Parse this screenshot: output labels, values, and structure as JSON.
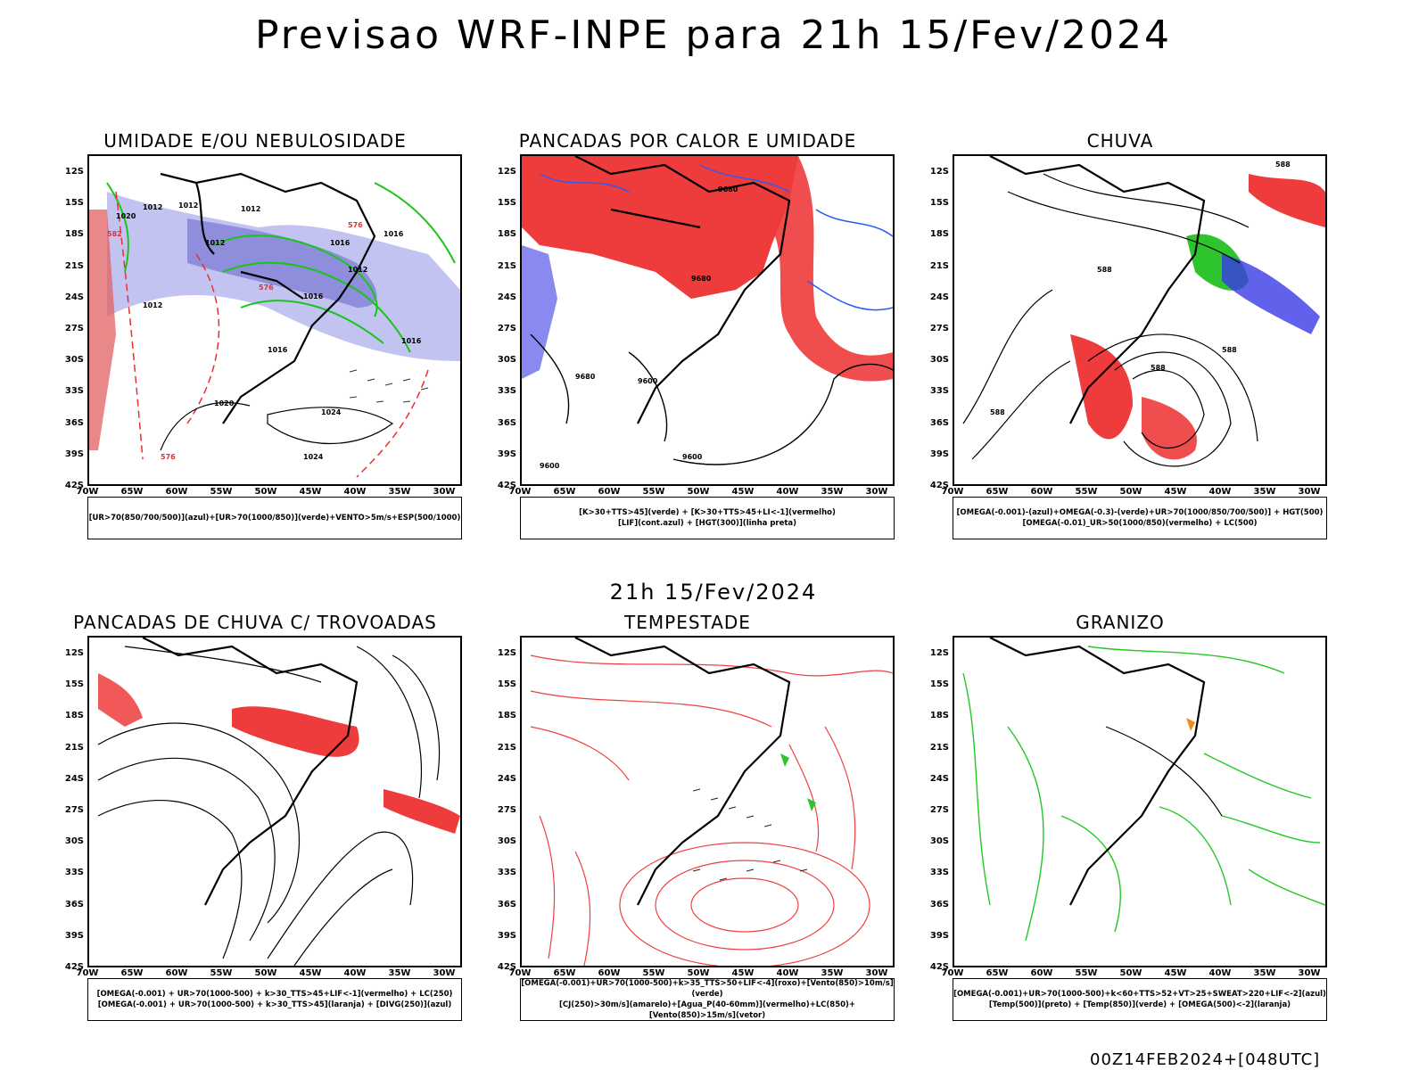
{
  "title": "Previsao WRF-INPE  para 21h 15/Fev/2024",
  "mid_label": "21h 15/Fev/2024",
  "footer": "00Z14FEB2024+[048UTC]",
  "lat_ticks": [
    "12S",
    "15S",
    "18S",
    "21S",
    "24S",
    "27S",
    "30S",
    "33S",
    "36S",
    "39S",
    "42S"
  ],
  "lon_ticks": [
    "70W",
    "65W",
    "60W",
    "55W",
    "50W",
    "45W",
    "40W",
    "35W",
    "30W"
  ],
  "panels": [
    {
      "title": "UMIDADE E/OU NEBULOSIDADE",
      "legend": [
        "[UR>70(850/700/500)](azul)+[UR>70(1000/850)](verde)+VENTO>5m/s+ESP(500/1000)"
      ],
      "contour_labels": [
        "1012",
        "1012",
        "1012",
        "1012",
        "1016",
        "1016",
        "1016",
        "1012",
        "1012",
        "1016",
        "1020",
        "1016",
        "1020",
        "1024",
        "1024",
        "576",
        "576",
        "576",
        "582"
      ]
    },
    {
      "title": "PANCADAS POR CALOR E UMIDADE",
      "legend": [
        "[K>30+TTS>45](verde) + [K>30+TTS>45+LI<-1](vermelho)",
        "[LIF](cont.azul) + [HGT(300)](linha preta)"
      ],
      "contour_labels": [
        "9680",
        "9680",
        "9680",
        "9600",
        "9600",
        "9600"
      ]
    },
    {
      "title": "CHUVA",
      "legend": [
        "[OMEGA(-0.001)-(azul)+OMEGA(-0.3)-(verde)+UR>70(1000/850/700/500)] + HGT(500)",
        "[OMEGA(-0.01)_UR>50(1000/850)(vermelho) + LC(500)"
      ],
      "contour_labels": [
        "588",
        "588",
        "588",
        "588",
        "588"
      ]
    },
    {
      "title": "PANCADAS DE CHUVA C/ TROVOADAS",
      "legend": [
        "[OMEGA(-0.001) + UR>70(1000-500) + k>30_TTS>45+LIF<-1](vermelho) + LC(250)",
        "[OMEGA(-0.001) + UR>70(1000-500) + k>30_TTS>45](laranja) + [DIVG(250)](azul)"
      ],
      "contour_labels": []
    },
    {
      "title": "TEMPESTADE",
      "legend": [
        "[OMEGA(-0.001)+UR>70(1000-500)+k>35_TTS>50+LIF<-4](roxo)+[Vento(850)>10m/s](verde)",
        "[CJ(250)>30m/s](amarelo)+[Agua_P(40-60mm)](vermelho)+LC(850)+[Vento(850)>15m/s](vetor)"
      ],
      "contour_labels": []
    },
    {
      "title": "GRANIZO",
      "legend": [
        "[OMEGA(-0.001)+UR>70(1000-500)+k<60+TTS>52+VT>25+SWEAT>220+LIF<-2](azul)",
        "[Temp(500)](preto) + [Temp(850)](verde) + [OMEGA(500)<-2](laranja)"
      ],
      "contour_labels": []
    }
  ]
}
